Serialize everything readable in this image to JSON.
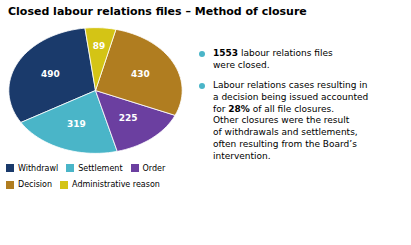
{
  "chart_data": {
    "type": "pie",
    "title": "Closed labour relations files – Method of closure",
    "categories": [
      "Withdrawl",
      "Settlement",
      "Order",
      "Decision",
      "Administrative reason"
    ],
    "values": [
      490,
      319,
      225,
      430,
      89
    ],
    "colors": [
      "#1a3a6b",
      "#4ab5c8",
      "#6b3fa0",
      "#b07d20",
      "#d4c415"
    ],
    "data_labels": true,
    "legend": "bottom",
    "annotations": [
      {
        "text": [
          "1553 labour relations files",
          "were closed."
        ],
        "color": "#4ab5c8"
      },
      {
        "text": [
          "Labour relations cases resulting in",
          "a decision being issued accounted",
          "for 28% of all file closures.",
          "Other closures were the result",
          "of withdrawals and settlements,",
          "often resulting from the Board’s",
          "intervention."
        ],
        "color": "#4ab5c8"
      }
    ]
  }
}
